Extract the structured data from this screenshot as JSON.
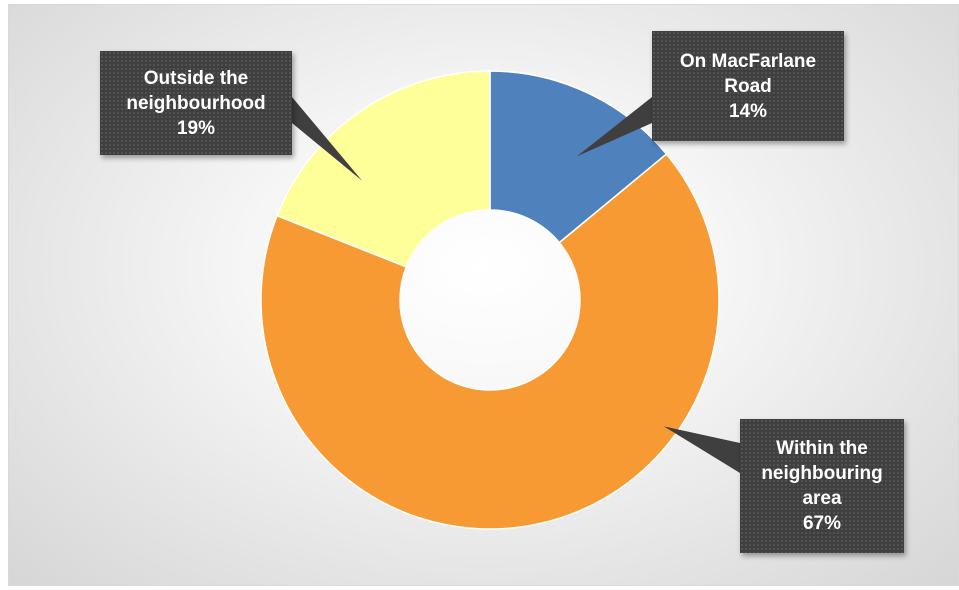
{
  "chart_data": {
    "type": "pie",
    "variant": "donut",
    "categories": [
      "On MacFarlane Road",
      "Within the neighbouring area",
      "Outside the neighbourhood"
    ],
    "values": [
      14,
      67,
      19
    ],
    "unit": "%",
    "labels": [
      {
        "lines": [
          "On MacFarlane",
          "Road"
        ],
        "percent": "14%"
      },
      {
        "lines": [
          "Within the",
          "neighbouring",
          "area"
        ],
        "percent": "67%"
      },
      {
        "lines": [
          "Outside the",
          "neighbourhood"
        ],
        "percent": "19%"
      }
    ],
    "colors": [
      "#4f81bd",
      "#f79a33",
      "#ffff99"
    ],
    "start_angle_deg": 0,
    "direction": "clockwise",
    "legend": "none",
    "grid": false
  }
}
